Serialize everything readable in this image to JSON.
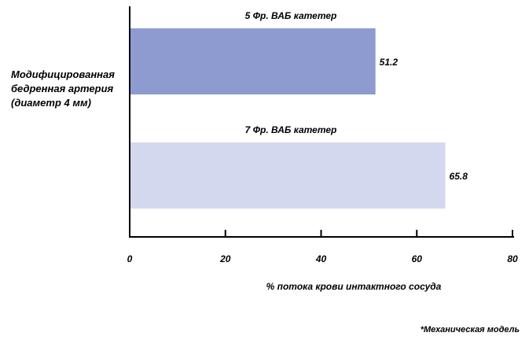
{
  "chart_data": {
    "type": "bar",
    "orientation": "horizontal",
    "category_label": "Модифицированная бедренная артерия\n(диаметр 4 мм)",
    "bars": [
      {
        "series_label": "5 Фр. ВАБ катетер",
        "value": 51.2,
        "value_label": "51.2",
        "color": "#8e9bd1"
      },
      {
        "series_label": "7 Фр. ВАБ катетер",
        "value": 65.8,
        "value_label": "65.8",
        "color": "#d4d8ee"
      }
    ],
    "xaxis": {
      "min": 0,
      "max": 80,
      "ticks": [
        0,
        20,
        40,
        60,
        80
      ],
      "tick_labels": [
        "0",
        "20",
        "40",
        "60",
        "80"
      ],
      "label": "% потока крови интактного сосуда"
    },
    "footnote": "*Механическая модель"
  }
}
